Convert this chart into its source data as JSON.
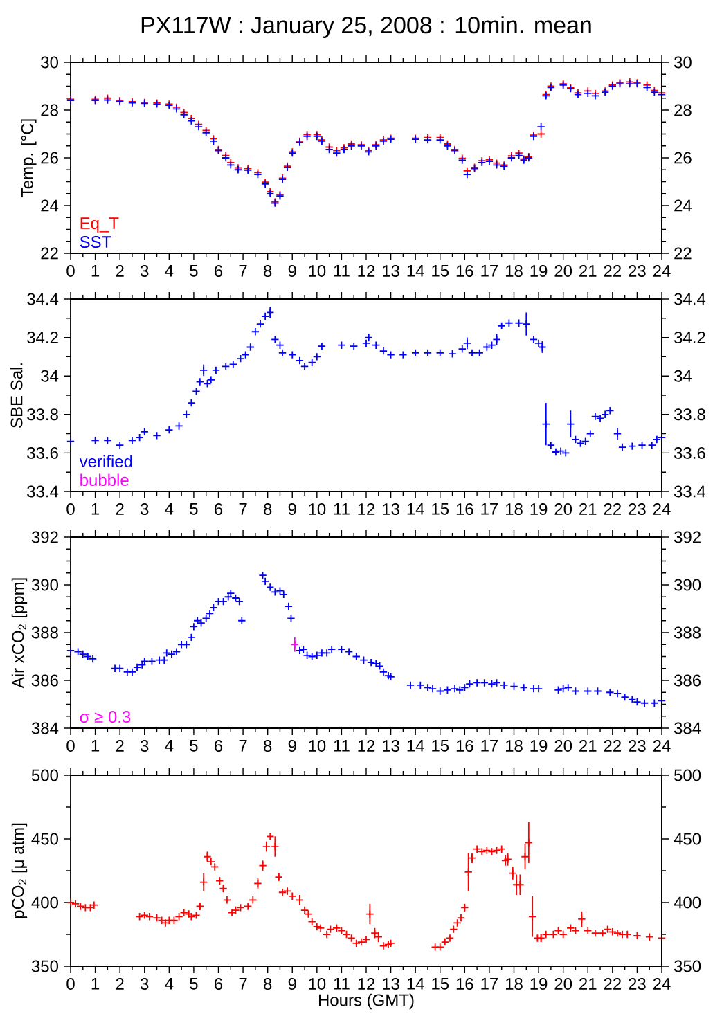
{
  "chart_data": [
    {
      "type": "scatter",
      "title": "PX117W : January 25, 2008 : 10min. mean",
      "ylabel": "Temp. [°C]",
      "marker": "cross",
      "legend": "bottom left",
      "xlim": [
        0,
        24
      ],
      "xticks": [
        0,
        1,
        2,
        3,
        4,
        5,
        6,
        7,
        8,
        9,
        10,
        11,
        12,
        13,
        14,
        15,
        16,
        17,
        18,
        19,
        20,
        21,
        22,
        23,
        24
      ],
      "ylim": [
        22,
        30
      ],
      "yticks": [
        22,
        24,
        26,
        28,
        30
      ],
      "y2lim": [
        22,
        30
      ],
      "y2ticks": [
        22,
        24,
        26,
        28,
        30
      ],
      "x": [
        0,
        1,
        1.5,
        2,
        2.5,
        3,
        3.5,
        4,
        4.3,
        4.6,
        4.9,
        5.2,
        5.5,
        5.8,
        6,
        6.3,
        6.5,
        6.8,
        7.2,
        7.6,
        7.9,
        8.1,
        8.3,
        8.5,
        8.6,
        8.8,
        9.0,
        9.3,
        9.6,
        10,
        10.2,
        10.5,
        10.8,
        11.1,
        11.4,
        11.8,
        12.1,
        12.4,
        12.7,
        13,
        14,
        14.5,
        15,
        15.3,
        15.6,
        15.9,
        16.1,
        16.4,
        16.7,
        17,
        17.3,
        17.6,
        17.9,
        18.2,
        18.4,
        18.6,
        18.8,
        19.1,
        19.3,
        19.5,
        20,
        20.3,
        20.6,
        21,
        21.3,
        21.7,
        22,
        22.3,
        22.7,
        23,
        23.4,
        23.7,
        24
      ],
      "series": [
        {
          "name": "Eq_T",
          "color": "#ff0000",
          "values": [
            28.45,
            28.45,
            28.5,
            28.4,
            28.35,
            28.32,
            28.3,
            28.25,
            28.12,
            27.9,
            27.65,
            27.4,
            27.15,
            26.8,
            26.35,
            26.1,
            25.8,
            25.58,
            25.55,
            25.38,
            24.98,
            24.58,
            24.15,
            24.45,
            25.15,
            25.65,
            26.25,
            26.7,
            26.97,
            26.97,
            26.75,
            26.45,
            26.3,
            26.42,
            26.58,
            26.55,
            26.3,
            26.55,
            26.75,
            26.82,
            26.82,
            26.85,
            26.85,
            26.58,
            26.35,
            25.98,
            25.45,
            25.6,
            25.88,
            25.92,
            25.78,
            25.7,
            26.08,
            26.2,
            25.95,
            26.05,
            26.95,
            27.0,
            28.65,
            29.0,
            29.1,
            28.95,
            28.72,
            28.8,
            28.7,
            28.8,
            29.05,
            29.15,
            29.18,
            29.15,
            29.05,
            28.82,
            28.72
          ]
        },
        {
          "name": "SST",
          "color": "#0000ff",
          "values": [
            28.4,
            28.4,
            28.42,
            28.35,
            28.3,
            28.28,
            28.25,
            28.2,
            28.05,
            27.8,
            27.55,
            27.3,
            27.05,
            26.7,
            26.3,
            26.0,
            25.7,
            25.5,
            25.48,
            25.3,
            24.9,
            24.5,
            24.1,
            24.4,
            25.1,
            25.6,
            26.2,
            26.65,
            26.9,
            26.9,
            26.7,
            26.35,
            26.2,
            26.35,
            26.5,
            26.5,
            26.25,
            26.5,
            26.7,
            26.78,
            26.78,
            26.75,
            26.75,
            26.5,
            26.3,
            25.9,
            25.3,
            25.55,
            25.8,
            25.85,
            25.7,
            25.65,
            26.0,
            26.1,
            25.9,
            26.0,
            26.9,
            27.3,
            28.6,
            28.95,
            29.05,
            28.9,
            28.65,
            28.7,
            28.6,
            28.75,
            29.0,
            29.1,
            29.1,
            29.1,
            28.95,
            28.75,
            28.65
          ]
        }
      ]
    },
    {
      "type": "scatter",
      "ylabel": "SBE Sal.",
      "marker": "cross",
      "legend": "bottom left",
      "xlim": [
        0,
        24
      ],
      "xticks": [
        0,
        1,
        2,
        3,
        4,
        5,
        6,
        7,
        8,
        9,
        10,
        11,
        12,
        13,
        14,
        15,
        16,
        17,
        18,
        19,
        20,
        21,
        22,
        23,
        24
      ],
      "ylim": [
        33.4,
        34.4
      ],
      "yticks": [
        33.4,
        33.6,
        33.8,
        34,
        34.2,
        34.4
      ],
      "y2lim": [
        33.4,
        34.4
      ],
      "y2ticks": [
        33.4,
        33.6,
        33.8,
        34,
        34.2,
        34.4
      ],
      "series": [
        {
          "name": "verified",
          "color": "#0000ff",
          "x": [
            0,
            1,
            1.5,
            2,
            2.5,
            2.8,
            3.0,
            3.5,
            4,
            4.4,
            4.7,
            4.9,
            5.1,
            5.25,
            5.4,
            5.55,
            5.7,
            5.9,
            6.3,
            6.6,
            6.9,
            7.1,
            7.3,
            7.5,
            7.7,
            7.9,
            8.1,
            8.3,
            8.5,
            8.6,
            9.0,
            9.3,
            9.5,
            9.8,
            10.0,
            10.2,
            11,
            11.5,
            12.0,
            12.1,
            12.4,
            12.7,
            13,
            13.5,
            14,
            14.5,
            15,
            15.5,
            15.9,
            16.1,
            16.3,
            16.6,
            16.9,
            17.1,
            17.3,
            17.5,
            17.8,
            18.2,
            18.5,
            18.8,
            19.0,
            19.15,
            19.3,
            19.5,
            19.7,
            19.9,
            20.1,
            20.3,
            20.5,
            20.7,
            20.9,
            21.1,
            21.3,
            21.5,
            21.7,
            21.9,
            22.2,
            22.4,
            22.8,
            23.2,
            23.6,
            23.8,
            24
          ],
          "values": [
            33.66,
            33.665,
            33.665,
            33.64,
            33.665,
            33.68,
            33.71,
            33.69,
            33.72,
            33.74,
            33.8,
            33.86,
            33.92,
            33.97,
            34.03,
            33.96,
            33.98,
            34.03,
            34.05,
            34.06,
            34.09,
            34.11,
            34.15,
            34.23,
            34.27,
            34.31,
            34.33,
            34.19,
            34.16,
            34.12,
            34.11,
            34.08,
            34.05,
            34.07,
            34.1,
            34.155,
            34.16,
            34.155,
            34.17,
            34.2,
            34.16,
            34.13,
            34.11,
            34.11,
            34.12,
            34.12,
            34.12,
            34.115,
            34.14,
            34.17,
            34.12,
            34.12,
            34.15,
            34.16,
            34.19,
            34.26,
            34.275,
            34.275,
            34.27,
            34.19,
            34.17,
            34.15,
            33.75,
            33.64,
            33.605,
            33.61,
            33.6,
            33.75,
            33.67,
            33.65,
            33.66,
            33.7,
            33.79,
            33.78,
            33.8,
            33.82,
            33.7,
            33.63,
            33.635,
            33.64,
            33.64,
            33.67,
            33.68
          ],
          "errors": [
            null,
            null,
            null,
            null,
            null,
            null,
            null,
            null,
            null,
            null,
            null,
            null,
            null,
            null,
            0.03,
            null,
            null,
            null,
            null,
            null,
            null,
            null,
            null,
            null,
            null,
            null,
            0.03,
            null,
            null,
            null,
            null,
            null,
            null,
            null,
            null,
            null,
            null,
            null,
            null,
            0.02,
            null,
            null,
            null,
            null,
            null,
            null,
            null,
            null,
            null,
            0.03,
            null,
            null,
            null,
            null,
            0.03,
            null,
            null,
            null,
            0.06,
            null,
            null,
            0.03,
            0.11,
            null,
            null,
            null,
            null,
            0.07,
            null,
            null,
            null,
            null,
            null,
            null,
            null,
            null,
            0.03,
            null,
            null,
            null,
            null,
            null,
            null
          ]
        },
        {
          "name": "bubble",
          "color": "#ff00ff"
        }
      ]
    },
    {
      "type": "scatter",
      "ylabel": "Air xCO$_{2}$ [ppm]",
      "marker": "cross",
      "legend": "bottom left",
      "xlim": [
        0,
        24
      ],
      "xticks": [
        0,
        1,
        2,
        3,
        4,
        5,
        6,
        7,
        8,
        9,
        10,
        11,
        12,
        13,
        14,
        15,
        16,
        17,
        18,
        19,
        20,
        21,
        22,
        23,
        24
      ],
      "ylim": [
        384,
        392
      ],
      "yticks": [
        384,
        386,
        388,
        390,
        392
      ],
      "y2lim": [
        384,
        392
      ],
      "y2ticks": [
        384,
        386,
        388,
        390,
        392
      ],
      "series": [
        {
          "color": "#0000ff",
          "x": [
            0,
            0.3,
            0.5,
            0.7,
            0.9,
            1.8,
            2.0,
            2.3,
            2.5,
            2.7,
            2.9,
            3.0,
            3.3,
            3.6,
            3.8,
            3.9,
            4.1,
            4.3,
            4.5,
            4.7,
            4.9,
            5.0,
            5.15,
            5.3,
            5.5,
            5.65,
            5.8,
            6.0,
            6.2,
            6.4,
            6.5,
            6.7,
            6.85,
            6.95,
            7.8,
            7.9,
            8.1,
            8.3,
            8.5,
            8.65,
            8.85,
            8.95,
            9.3,
            9.45,
            9.6,
            9.8,
            10.0,
            10.2,
            10.4,
            10.6,
            11.0,
            11.3,
            11.6,
            11.9,
            12.2,
            12.4,
            12.55,
            12.7,
            12.9,
            13.0,
            13.8,
            14.2,
            14.5,
            14.7,
            15.0,
            15.3,
            15.6,
            15.8,
            16.0,
            16.2,
            16.5,
            16.8,
            17.1,
            17.3,
            17.6,
            18.0,
            18.4,
            18.8,
            19.0,
            19.8,
            20.0,
            20.2,
            20.5,
            21.0,
            21.4,
            21.9,
            22.2,
            22.5,
            22.8,
            23.0,
            23.3,
            23.7,
            24.0
          ],
          "values": [
            387.25,
            387.2,
            387.1,
            387.0,
            386.9,
            386.5,
            386.5,
            386.35,
            386.35,
            386.55,
            386.65,
            386.8,
            386.8,
            386.85,
            386.85,
            387.15,
            387.1,
            387.2,
            387.5,
            387.5,
            387.8,
            388.25,
            388.5,
            388.4,
            388.6,
            388.8,
            389.05,
            389.3,
            389.3,
            389.5,
            389.65,
            389.45,
            389.3,
            388.5,
            390.4,
            390.15,
            389.9,
            389.7,
            389.75,
            389.6,
            389.1,
            388.6,
            387.25,
            387.3,
            387.05,
            387.0,
            387.05,
            387.15,
            387.15,
            387.3,
            387.3,
            387.2,
            387.0,
            386.85,
            386.75,
            386.7,
            386.6,
            386.35,
            386.2,
            386.15,
            385.8,
            385.8,
            385.7,
            385.65,
            385.55,
            385.6,
            385.65,
            385.6,
            385.7,
            385.85,
            385.9,
            385.9,
            385.85,
            385.9,
            385.8,
            385.75,
            385.7,
            385.65,
            385.65,
            385.6,
            385.65,
            385.7,
            385.55,
            385.55,
            385.55,
            385.5,
            385.45,
            385.3,
            385.2,
            385.1,
            385.05,
            385.05,
            385.15
          ]
        },
        {
          "name": "σ ≥ 0.3",
          "color": "#ff00ff",
          "x": [
            9.1
          ],
          "values": [
            387.5
          ],
          "errors": [
            0.3
          ]
        }
      ]
    },
    {
      "type": "scatter",
      "ylabel": "pCO$_{2}$ [μ atm]",
      "xlabel": "Hours (GMT)",
      "marker": "cross",
      "xlim": [
        0,
        24
      ],
      "xticks": [
        0,
        1,
        2,
        3,
        4,
        5,
        6,
        7,
        8,
        9,
        10,
        11,
        12,
        13,
        14,
        15,
        16,
        17,
        18,
        19,
        20,
        21,
        22,
        23,
        24
      ],
      "ylim": [
        350,
        500
      ],
      "yticks": [
        350,
        400,
        450,
        500
      ],
      "y2lim": [
        350,
        500
      ],
      "y2ticks": [
        350,
        400,
        450,
        500
      ],
      "x": [
        0,
        0.2,
        0.4,
        0.6,
        0.8,
        0.95,
        2.8,
        3.0,
        3.2,
        3.5,
        3.7,
        3.85,
        4.0,
        4.2,
        4.4,
        4.6,
        4.8,
        4.9,
        5.1,
        5.25,
        5.4,
        5.55,
        5.7,
        5.85,
        6.05,
        6.2,
        6.35,
        6.55,
        6.7,
        6.9,
        7.2,
        7.4,
        7.6,
        7.8,
        7.95,
        8.1,
        8.3,
        8.45,
        8.6,
        8.8,
        9.0,
        9.3,
        9.5,
        9.65,
        9.8,
        10.0,
        10.15,
        10.4,
        10.55,
        10.8,
        11.0,
        11.2,
        11.4,
        11.6,
        11.8,
        12.0,
        12.15,
        12.35,
        12.5,
        12.7,
        12.9,
        13.0,
        14.8,
        15.0,
        15.2,
        15.4,
        15.55,
        15.7,
        15.85,
        16.0,
        16.15,
        16.3,
        16.5,
        16.7,
        16.9,
        17.1,
        17.3,
        17.5,
        17.65,
        17.75,
        17.95,
        18.1,
        18.25,
        18.45,
        18.6,
        18.75,
        18.95,
        19.1,
        19.3,
        19.6,
        19.8,
        20.0,
        20.3,
        20.5,
        20.75,
        21.0,
        21.3,
        21.6,
        21.8,
        22.0,
        22.2,
        22.4,
        22.6,
        23.0,
        23.5,
        24.0
      ],
      "series": [
        {
          "color": "#ff0000",
          "values": [
            400,
            399,
            397,
            396,
            396,
            398,
            389,
            390,
            389,
            388,
            386,
            384,
            386,
            386,
            389,
            392,
            391,
            389,
            390,
            397,
            416,
            436,
            432,
            428,
            417,
            411,
            402,
            392,
            394,
            396,
            397,
            402,
            415,
            429,
            444,
            452,
            444,
            420,
            408,
            409,
            405,
            402,
            394,
            391,
            385,
            381,
            380,
            375,
            379,
            380,
            378,
            375,
            372,
            368,
            369,
            371,
            391,
            376,
            373,
            366,
            367,
            368,
            365,
            365,
            369,
            372,
            379,
            384,
            388,
            396,
            424,
            435,
            442,
            440,
            441,
            440,
            441,
            442,
            433,
            434,
            423,
            414,
            414,
            436,
            447,
            389,
            372,
            372,
            375,
            375,
            378,
            375,
            380,
            378,
            387,
            378,
            376,
            376,
            379,
            377,
            376,
            375,
            375,
            374,
            373,
            372
          ],
          "errors": [
            null,
            null,
            null,
            null,
            null,
            null,
            null,
            null,
            null,
            null,
            null,
            null,
            null,
            null,
            null,
            null,
            null,
            null,
            null,
            3,
            7,
            4,
            null,
            null,
            3,
            3,
            null,
            null,
            null,
            null,
            null,
            null,
            4,
            4,
            4,
            null,
            8,
            3,
            null,
            null,
            null,
            4,
            null,
            null,
            null,
            null,
            null,
            null,
            null,
            null,
            null,
            null,
            null,
            null,
            null,
            null,
            8,
            4,
            4,
            null,
            null,
            null,
            null,
            null,
            null,
            null,
            null,
            null,
            null,
            3,
            15,
            4,
            null,
            null,
            null,
            null,
            null,
            null,
            4,
            5,
            5,
            8,
            8,
            10,
            16,
            16,
            null,
            3,
            null,
            null,
            null,
            null,
            null,
            null,
            6,
            null,
            null,
            null,
            null,
            null,
            null,
            null,
            null,
            null,
            null,
            null
          ]
        }
      ]
    }
  ]
}
